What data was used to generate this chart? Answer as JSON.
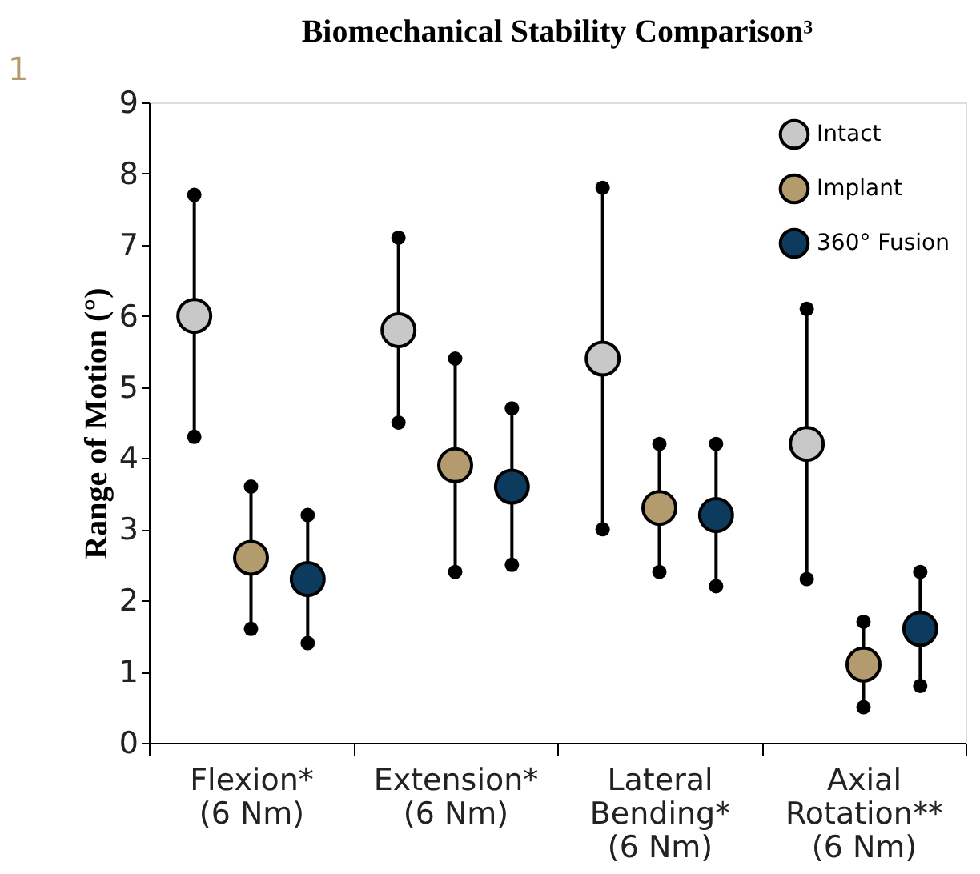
{
  "chart_data": {
    "type": "scatter",
    "title": "Biomechanical Stability Comparison³",
    "ylabel": "Range of Motion (°)",
    "annotations": [
      "1"
    ],
    "categories": [
      "Flexion*\n(6 Nm)",
      "Extension*\n(6 Nm)",
      "Lateral\nBending*\n(6 Nm)",
      "Axial\nRotation**\n(6 Nm)"
    ],
    "series": [
      {
        "name": "Intact",
        "color": "#c8c8c8",
        "values": [
          6.0,
          5.8,
          5.4,
          4.2
        ],
        "errors": [
          1.7,
          1.3,
          2.4,
          1.9
        ]
      },
      {
        "name": "Implant",
        "color": "#b39b6e",
        "values": [
          2.6,
          3.9,
          3.3,
          1.1
        ],
        "errors": [
          1.0,
          1.5,
          0.9,
          0.6
        ]
      },
      {
        "name": "360° Fusion",
        "color": "#0d3b5e",
        "values": [
          2.3,
          3.6,
          3.2,
          1.6
        ],
        "errors": [
          0.9,
          1.1,
          1.0,
          0.8
        ]
      }
    ],
    "ylim": [
      0,
      9
    ],
    "yticks": [
      0,
      1,
      2,
      3,
      4,
      5,
      6,
      7,
      8,
      9
    ],
    "grid": false,
    "legend": "top right",
    "marker": "circle"
  }
}
